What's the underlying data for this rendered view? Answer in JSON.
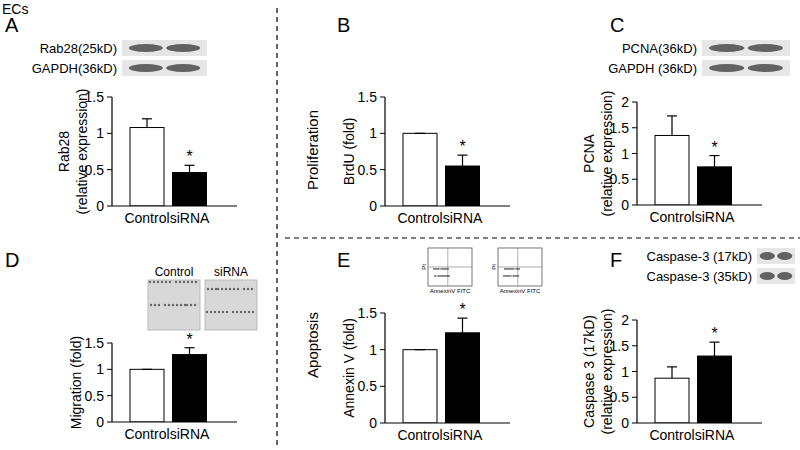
{
  "figure_label": "ECs",
  "sections": [
    "Proliferation",
    "Apoptosis"
  ],
  "chart_data": [
    {
      "type": "bar",
      "title": "A",
      "ylabel": [
        "Rab28",
        "(relative expression)"
      ],
      "blot_labels": [
        "Rab28(25kD)",
        "GAPDH(36kD)"
      ],
      "categories": [
        "Control",
        "siRNA"
      ],
      "values": [
        1.08,
        0.46
      ],
      "errors": [
        0.12,
        0.1
      ],
      "value_annotations": [
        null,
        "*"
      ],
      "colors": [
        "#ffffff",
        "#000000"
      ],
      "ylim": [
        0,
        1.5
      ],
      "yticks": [
        0,
        0.5,
        1,
        1.5
      ]
    },
    {
      "type": "bar",
      "title": "B",
      "ylabel": [
        "BrdU (fold)"
      ],
      "categories": [
        "Control",
        "siRNA"
      ],
      "values": [
        1,
        0.55
      ],
      "errors": [
        0,
        0.15
      ],
      "value_annotations": [
        null,
        "*"
      ],
      "colors": [
        "#ffffff",
        "#000000"
      ],
      "ylim": [
        0,
        1.5
      ],
      "yticks": [
        0,
        0.5,
        1,
        1.5
      ]
    },
    {
      "type": "bar",
      "title": "C",
      "ylabel": [
        "PCNA",
        "(relative expression)"
      ],
      "blot_labels": [
        "PCNA(36kD)",
        "GAPDH (36kD)"
      ],
      "categories": [
        "Control",
        "siRNA"
      ],
      "values": [
        1.35,
        0.74
      ],
      "errors": [
        0.38,
        0.22
      ],
      "value_annotations": [
        null,
        "*"
      ],
      "colors": [
        "#ffffff",
        "#000000"
      ],
      "ylim": [
        0,
        2
      ],
      "yticks": [
        0,
        0.5,
        1,
        1.5,
        2
      ]
    },
    {
      "type": "bar",
      "title": "D",
      "ylabel": [
        "Migration (fold)"
      ],
      "image_labels": [
        "Control",
        "siRNA"
      ],
      "categories": [
        "Control",
        "siRNA"
      ],
      "values": [
        1,
        1.28
      ],
      "errors": [
        0,
        0.13
      ],
      "value_annotations": [
        null,
        "*"
      ],
      "colors": [
        "#ffffff",
        "#000000"
      ],
      "ylim": [
        0,
        1.5
      ],
      "yticks": [
        0,
        0.5,
        1,
        1.5
      ]
    },
    {
      "type": "bar",
      "title": "E",
      "ylabel": [
        "Annexin V (fold)"
      ],
      "inset_labels": [
        "PI",
        "AnnexinV FITC"
      ],
      "categories": [
        "Control",
        "siRNA"
      ],
      "values": [
        1,
        1.23
      ],
      "errors": [
        0,
        0.2
      ],
      "value_annotations": [
        null,
        "*"
      ],
      "colors": [
        "#ffffff",
        "#000000"
      ],
      "ylim": [
        0,
        1.5
      ],
      "yticks": [
        0,
        0.5,
        1,
        1.5
      ]
    },
    {
      "type": "bar",
      "title": "F",
      "ylabel": [
        "Caspase 3 (17kD)",
        "(relative expression)"
      ],
      "blot_labels": [
        "Caspase-3 (17kD)",
        "Caspase-3 (35kD)"
      ],
      "categories": [
        "Control",
        "siRNA"
      ],
      "values": [
        0.87,
        1.3
      ],
      "errors": [
        0.22,
        0.27
      ],
      "value_annotations": [
        null,
        "*"
      ],
      "colors": [
        "#ffffff",
        "#000000"
      ],
      "ylim": [
        0,
        2
      ],
      "yticks": [
        0,
        0.5,
        1,
        1.5,
        2
      ]
    }
  ]
}
